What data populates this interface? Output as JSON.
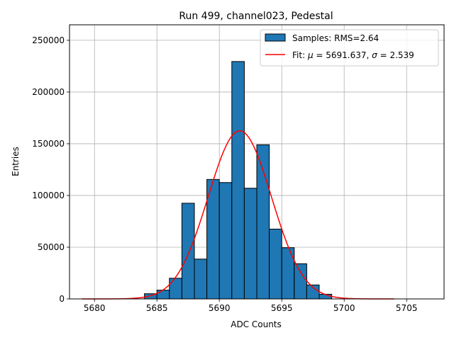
{
  "chart_data": {
    "type": "bar",
    "title": "Run 499, channel023, Pedestal",
    "xlabel": "ADC Counts",
    "ylabel": "Entries",
    "xlim": [
      5678,
      5708
    ],
    "ylim": [
      0,
      265000
    ],
    "xticks": [
      5680,
      5685,
      5690,
      5695,
      5700,
      5705
    ],
    "yticks": [
      0,
      50000,
      100000,
      150000,
      200000,
      250000
    ],
    "grid": true,
    "legend_position": "top-right",
    "histogram": {
      "name": "Samples: RMS=2.64",
      "color": "#1f77b4",
      "bin_width": 1,
      "bin_start": [
        5684,
        5685,
        5686,
        5687,
        5688,
        5689,
        5690,
        5691,
        5692,
        5693,
        5694,
        5695,
        5696,
        5697,
        5698
      ],
      "counts": [
        5000,
        8500,
        20000,
        92500,
        38500,
        115500,
        112500,
        229500,
        107000,
        149000,
        67500,
        49500,
        34000,
        13500,
        4500
      ]
    },
    "fit": {
      "name_prefix": "Fit: ",
      "name_mu": "μ",
      "name_mid": " = 5691.637, ",
      "name_sigma": "σ",
      "name_suffix": " = 2.539",
      "color": "#ff0000",
      "mu": 5691.637,
      "sigma": 2.539,
      "amplitude": 162500,
      "x_range": [
        5679,
        5704
      ]
    }
  }
}
